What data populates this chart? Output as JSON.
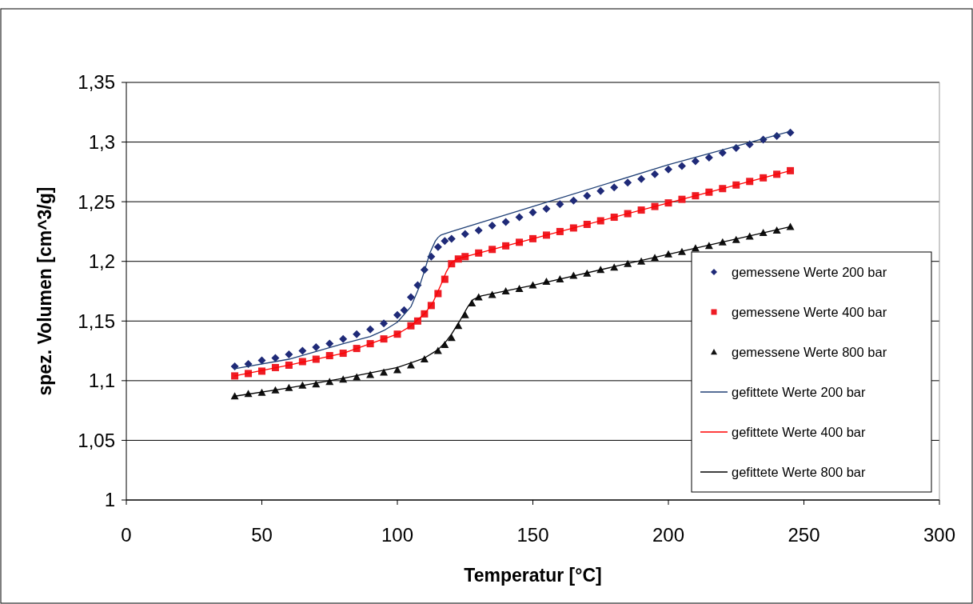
{
  "chart_data": {
    "type": "scatter",
    "xlabel": "Temperatur [°C]",
    "ylabel": "spez. Volumen [cm^3/g]",
    "xlim": [
      0,
      300
    ],
    "xticks": [
      0,
      50,
      100,
      150,
      200,
      250,
      300
    ],
    "ylim": [
      1,
      1.35
    ],
    "yticks": [
      1,
      {
        "value": 1.05,
        "label": "1,05"
      },
      {
        "value": 1.1,
        "label": "1,1"
      },
      {
        "value": 1.15,
        "label": "1,15"
      },
      {
        "value": 1.2,
        "label": "1,2"
      },
      {
        "value": 1.25,
        "label": "1,25"
      },
      {
        "value": 1.3,
        "label": "1,3"
      },
      {
        "value": 1.35,
        "label": "1,35"
      }
    ],
    "grid": "y",
    "legend": "right",
    "series": [
      {
        "name": "gemessene Werte 200 bar",
        "marker": "diamond",
        "color": "#1f2a78",
        "x": [
          40,
          45,
          50,
          55,
          60,
          65,
          70,
          75,
          80,
          85,
          90,
          95,
          100,
          102.5,
          105,
          107.5,
          110,
          112.5,
          115,
          117.5,
          120,
          125,
          130,
          135,
          140,
          145,
          150,
          155,
          160,
          165,
          170,
          175,
          180,
          185,
          190,
          195,
          200,
          205,
          210,
          215,
          220,
          225,
          230,
          235,
          240,
          245
        ],
        "values": [
          1.112,
          1.114,
          1.117,
          1.119,
          1.122,
          1.125,
          1.128,
          1.131,
          1.135,
          1.139,
          1.143,
          1.148,
          1.155,
          1.159,
          1.17,
          1.18,
          1.193,
          1.204,
          1.212,
          1.217,
          1.219,
          1.223,
          1.226,
          1.23,
          1.233,
          1.237,
          1.241,
          1.244,
          1.248,
          1.251,
          1.255,
          1.259,
          1.262,
          1.266,
          1.269,
          1.273,
          1.277,
          1.28,
          1.284,
          1.287,
          1.291,
          1.295,
          1.298,
          1.302,
          1.305,
          1.308
        ]
      },
      {
        "name": "gemessene Werte 400 bar",
        "marker": "square",
        "color": "#ee1c24",
        "x": [
          40,
          45,
          50,
          55,
          60,
          65,
          70,
          75,
          80,
          85,
          90,
          95,
          100,
          105,
          107.5,
          110,
          112.5,
          115,
          117.5,
          120,
          122.5,
          125,
          130,
          135,
          140,
          145,
          150,
          155,
          160,
          165,
          170,
          175,
          180,
          185,
          190,
          195,
          200,
          205,
          210,
          215,
          220,
          225,
          230,
          235,
          240,
          245
        ],
        "values": [
          1.104,
          1.106,
          1.108,
          1.111,
          1.113,
          1.116,
          1.118,
          1.121,
          1.123,
          1.127,
          1.131,
          1.135,
          1.139,
          1.146,
          1.15,
          1.156,
          1.163,
          1.173,
          1.185,
          1.198,
          1.202,
          1.204,
          1.207,
          1.21,
          1.213,
          1.216,
          1.219,
          1.222,
          1.225,
          1.228,
          1.231,
          1.234,
          1.237,
          1.24,
          1.243,
          1.246,
          1.249,
          1.252,
          1.255,
          1.258,
          1.261,
          1.264,
          1.267,
          1.27,
          1.273,
          1.276
        ]
      },
      {
        "name": "gemessene Werte 800 bar",
        "marker": "triangle",
        "color": "#111111",
        "x": [
          40,
          45,
          50,
          55,
          60,
          65,
          70,
          75,
          80,
          85,
          90,
          95,
          100,
          105,
          110,
          115,
          117.5,
          120,
          122.5,
          125,
          127.5,
          130,
          135,
          140,
          145,
          150,
          155,
          160,
          165,
          170,
          175,
          180,
          185,
          190,
          195,
          200,
          205,
          210,
          215,
          220,
          225,
          230,
          235,
          240,
          245
        ],
        "values": [
          1.087,
          1.089,
          1.09,
          1.092,
          1.094,
          1.096,
          1.097,
          1.099,
          1.101,
          1.103,
          1.105,
          1.107,
          1.109,
          1.113,
          1.118,
          1.125,
          1.13,
          1.136,
          1.146,
          1.155,
          1.165,
          1.17,
          1.172,
          1.175,
          1.177,
          1.18,
          1.183,
          1.185,
          1.188,
          1.19,
          1.193,
          1.195,
          1.198,
          1.2,
          1.203,
          1.206,
          1.208,
          1.211,
          1.213,
          1.216,
          1.218,
          1.221,
          1.224,
          1.226,
          1.229
        ]
      },
      {
        "name": "gefittete Werte 200 bar",
        "type": "line",
        "marker": "none",
        "line_style": "solid",
        "color": "#1f3f75",
        "x": [
          40,
          60,
          80,
          90,
          95,
          100,
          105,
          108,
          110,
          112,
          114,
          115,
          116,
          120,
          150,
          200,
          245
        ],
        "values": [
          1.11,
          1.118,
          1.131,
          1.137,
          1.142,
          1.149,
          1.162,
          1.178,
          1.192,
          1.207,
          1.217,
          1.22,
          1.222,
          1.225,
          1.246,
          1.281,
          1.309
        ]
      },
      {
        "name": "gefittete Werte 400 bar",
        "type": "line",
        "marker": "none",
        "line_style": "solid",
        "color": "#ff0000",
        "x": [
          40,
          60,
          80,
          100,
          105,
          110,
          113,
          116,
          118,
          120,
          122,
          150,
          200,
          245
        ],
        "values": [
          1.104,
          1.113,
          1.123,
          1.139,
          1.146,
          1.156,
          1.165,
          1.18,
          1.191,
          1.199,
          1.202,
          1.219,
          1.249,
          1.276
        ]
      },
      {
        "name": "gefittete Werte 800 bar",
        "type": "line",
        "marker": "none",
        "line_style": "solid",
        "color": "#000000",
        "x": [
          40,
          60,
          80,
          100,
          110,
          115,
          118,
          120,
          123,
          126,
          128,
          131,
          150,
          200,
          245
        ],
        "values": [
          1.087,
          1.094,
          1.102,
          1.111,
          1.119,
          1.126,
          1.133,
          1.139,
          1.15,
          1.162,
          1.168,
          1.171,
          1.18,
          1.206,
          1.229
        ]
      }
    ]
  }
}
